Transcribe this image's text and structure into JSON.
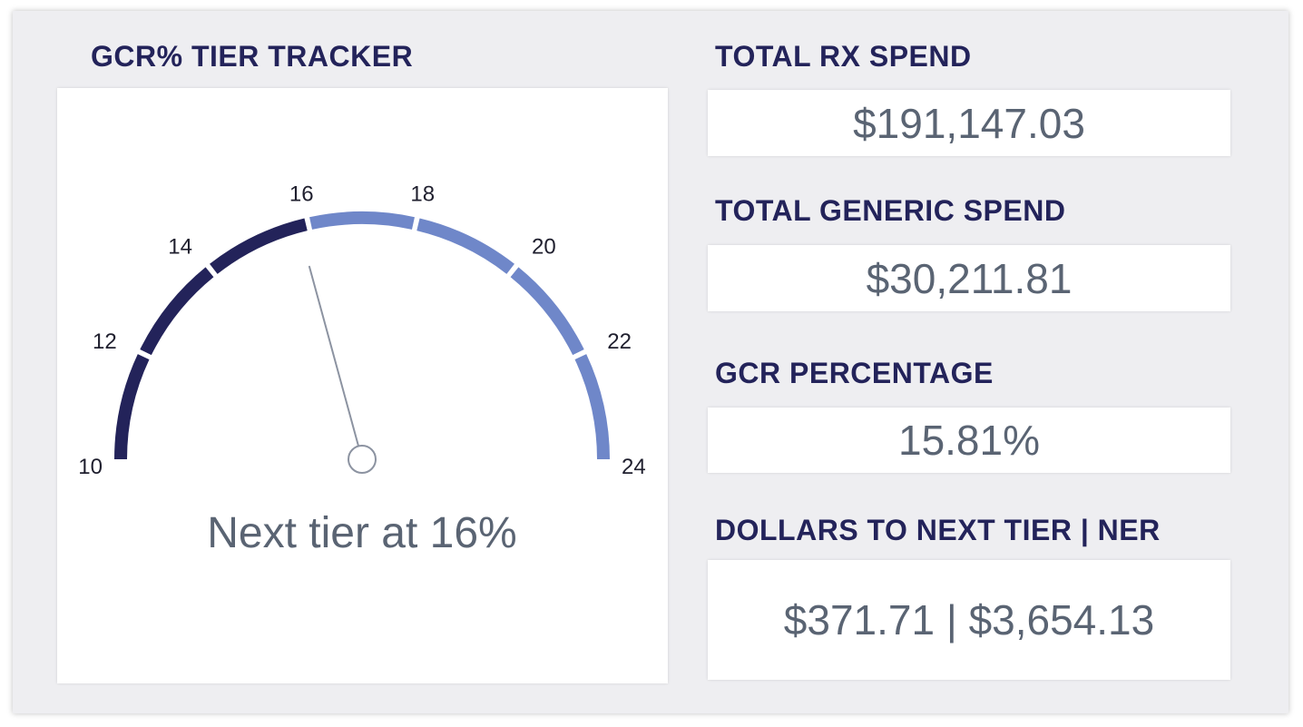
{
  "gauge": {
    "title": "GCR% TIER TRACKER",
    "min": 10,
    "max": 24,
    "value": 15.81,
    "ticks": [
      10,
      12,
      14,
      16,
      18,
      20,
      22,
      24
    ],
    "achieved_until": 16,
    "caption": "Next tier at 16%",
    "colors": {
      "achieved": "#23235a",
      "remaining": "#6f87c9",
      "needle": "#8c93a1"
    }
  },
  "kpis": [
    {
      "title": "TOTAL RX SPEND",
      "value": "$191,147.03"
    },
    {
      "title": "TOTAL GENERIC SPEND",
      "value": "$30,211.81"
    },
    {
      "title": "GCR PERCENTAGE",
      "value": "15.81%"
    },
    {
      "title": "DOLLARS TO NEXT TIER | NER",
      "value": "$371.71 | $3,654.13"
    }
  ]
}
